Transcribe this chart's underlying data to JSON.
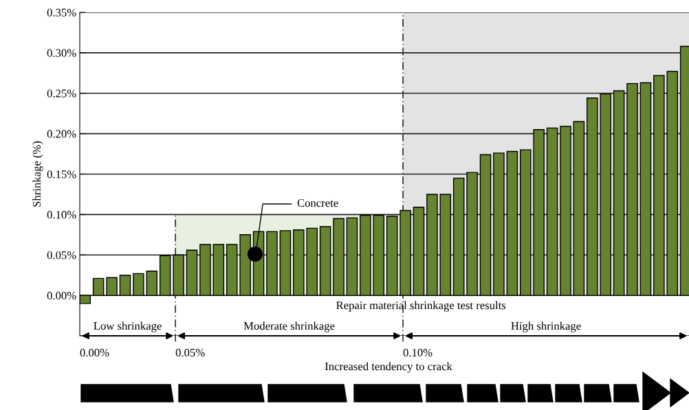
{
  "chart_data": {
    "type": "bar",
    "ylabel": "Shrinkage (%)",
    "categories": [
      null,
      null,
      null,
      null,
      null,
      null,
      null,
      null,
      null,
      null,
      null,
      null,
      null,
      null,
      null,
      null,
      null,
      null,
      null,
      null,
      null,
      null,
      null,
      null,
      null,
      null,
      null,
      null,
      null,
      null,
      null,
      null,
      null,
      null,
      null,
      null,
      null,
      null,
      null,
      null,
      null,
      null,
      null,
      null,
      null,
      null
    ],
    "values": [
      -0.01,
      0.021,
      0.022,
      0.025,
      0.027,
      0.03,
      0.049,
      0.05,
      0.056,
      0.063,
      0.063,
      0.063,
      0.075,
      0.079,
      0.079,
      0.08,
      0.081,
      0.083,
      0.085,
      0.095,
      0.096,
      0.099,
      0.099,
      0.098,
      0.105,
      0.109,
      0.125,
      0.125,
      0.145,
      0.152,
      0.174,
      0.176,
      0.178,
      0.18,
      0.205,
      0.207,
      0.209,
      0.215,
      0.244,
      0.249,
      0.253,
      0.262,
      0.263,
      0.272,
      0.277,
      0.308
    ],
    "color": "#66842f",
    "ylim": [
      -0.05,
      0.35
    ],
    "yticks": [
      {
        "value": -0.05,
        "label": null
      },
      {
        "value": 0,
        "label": "0.00%"
      },
      {
        "value": 0.05,
        "label": "0.05%"
      },
      {
        "value": 0.1,
        "label": "0.10%"
      },
      {
        "value": 0.15,
        "label": "0.15%"
      },
      {
        "value": 0.2,
        "label": "0.20%"
      },
      {
        "value": 0.25,
        "label": "0.25%"
      },
      {
        "value": 0.3,
        "label": "0.30%"
      },
      {
        "value": 0.35,
        "label": "0.35%"
      }
    ],
    "grid": "y",
    "bands": [
      {
        "axis": "y",
        "from": 0,
        "to": 0.1,
        "color": "#e8f0e0"
      },
      {
        "axis": "y",
        "from": 0,
        "to": 0.35,
        "color": "#e3e3e3"
      }
    ],
    "annotations": [
      "Concrete",
      "Repair material shrinkage test results",
      "Low shrinkage",
      "Moderate shrinkage",
      "High shrinkage",
      "0.00%",
      "0.05%",
      "0.10%",
      "Increased tendency to crack"
    ]
  }
}
